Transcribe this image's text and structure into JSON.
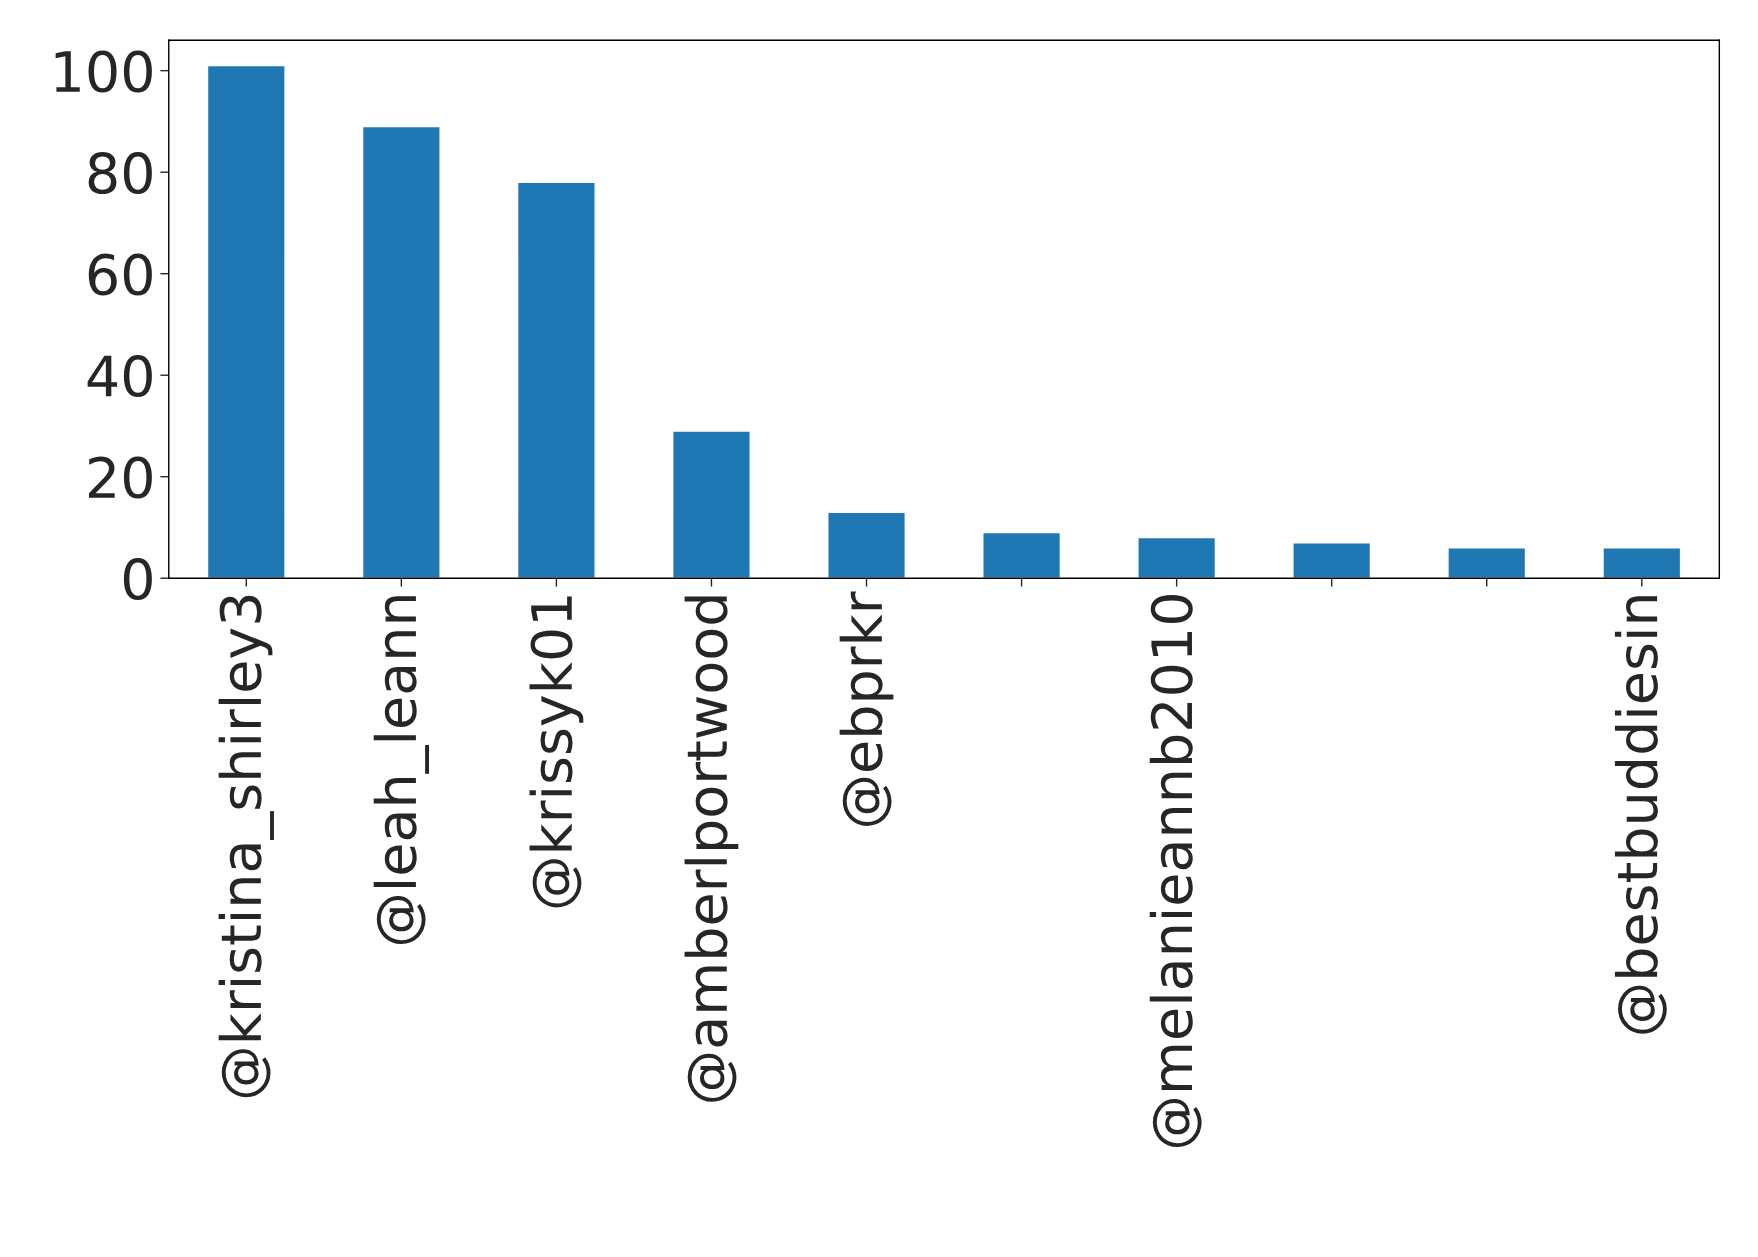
{
  "chart_data": {
    "type": "bar",
    "categories": [
      "@kristina_shirley3",
      "@leah_leann",
      "@krissyk01",
      "@amberlportwood",
      "@ebprkr",
      null,
      "@melanieannb2010",
      null,
      null,
      "@bestbuddiesin"
    ],
    "values": [
      101,
      89,
      78,
      29,
      13,
      9,
      8,
      7,
      6,
      6
    ],
    "color": "#1f77b4",
    "ylim": [
      0,
      106
    ],
    "yticks": [
      0,
      20,
      40,
      60,
      80,
      100
    ],
    "grid": false,
    "legend": false
  }
}
